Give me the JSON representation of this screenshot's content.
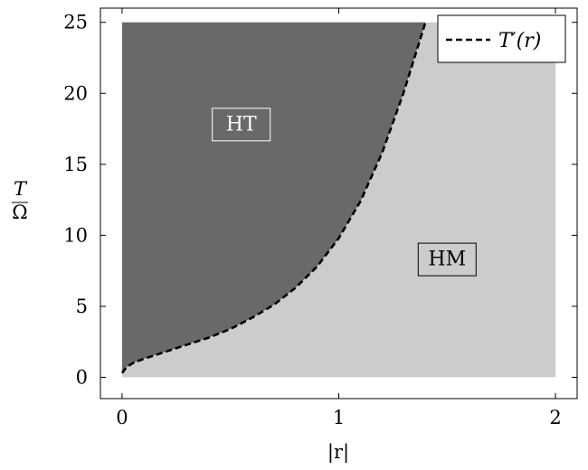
{
  "chart_data": {
    "type": "area",
    "xlabel": "|r|",
    "ylabel_numerator": "T",
    "ylabel_denominator": "Ω",
    "xlim": [
      -0.1,
      2.1
    ],
    "ylim": [
      -1.5,
      26
    ],
    "data_xrange": [
      0,
      2
    ],
    "data_yrange": [
      0,
      25
    ],
    "xticks": [
      0,
      1,
      2
    ],
    "yticks": [
      0,
      5,
      10,
      15,
      20,
      25
    ],
    "xtick_labels": [
      "0",
      "1",
      "2"
    ],
    "ytick_labels": [
      "0",
      "5",
      "10",
      "15",
      "20",
      "25"
    ],
    "grid": false,
    "legend_position": "top-right",
    "series": [
      {
        "name": "T′(r)",
        "style": "dashed",
        "color": "#000000",
        "x": [
          0,
          0.02,
          0.05,
          0.1,
          0.2,
          0.3,
          0.4,
          0.5,
          0.6,
          0.7,
          0.8,
          0.9,
          1.0,
          1.1,
          1.2,
          1.3,
          1.4
        ],
        "y": [
          0.3,
          0.7,
          1.0,
          1.3,
          1.8,
          2.3,
          2.8,
          3.4,
          4.2,
          5.1,
          6.3,
          7.8,
          9.8,
          12.4,
          15.8,
          20.1,
          25.0
        ]
      }
    ],
    "regions": [
      {
        "label": "HT",
        "color": "#696969",
        "text_color": "#ffffff",
        "label_x": 0.55,
        "label_y": 17.8
      },
      {
        "label": "HM",
        "color": "#cccccc",
        "text_color": "#000000",
        "label_x": 1.5,
        "label_y": 8.3
      }
    ]
  }
}
